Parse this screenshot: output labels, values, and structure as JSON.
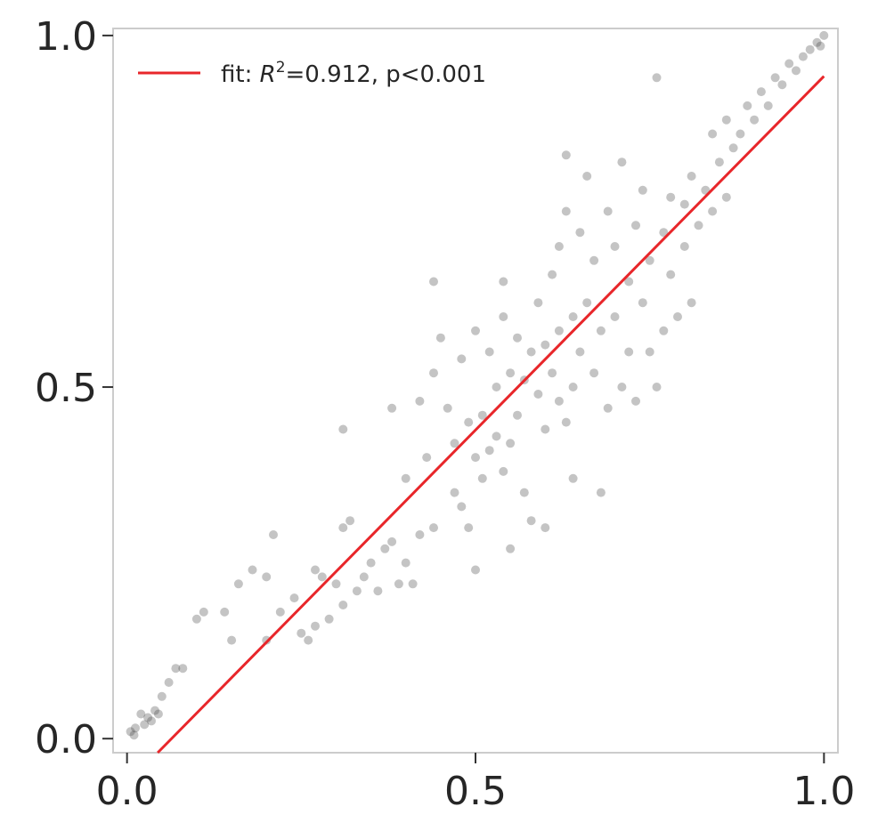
{
  "chart_data": {
    "type": "scatter",
    "title": "",
    "xlabel": "",
    "ylabel": "",
    "xlim": [
      -0.02,
      1.02
    ],
    "ylim": [
      -0.02,
      1.01
    ],
    "x_ticks": [
      {
        "value": 0.0,
        "label": "0.0"
      },
      {
        "value": 0.5,
        "label": "0.5"
      },
      {
        "value": 1.0,
        "label": "1.0"
      }
    ],
    "y_ticks": [
      {
        "value": 0.0,
        "label": "0.0"
      },
      {
        "value": 0.5,
        "label": "0.5"
      },
      {
        "value": 1.0,
        "label": "1.0"
      }
    ],
    "grid": false,
    "legend": {
      "placement": "upper-left",
      "entries": [
        {
          "prefix": "fit: ",
          "r_symbol": "R",
          "r_sup": "2",
          "suffix": "=0.912, p<0.001"
        }
      ]
    },
    "colors": {
      "points": "#3a3a3a",
      "fit_line": "#e8262a",
      "frame": "#cccccc",
      "text": "#262626"
    },
    "fit_line": {
      "x": [
        0.044,
        1.0
      ],
      "y": [
        -0.02,
        0.942
      ]
    },
    "points": [
      {
        "x": 0.005,
        "y": 0.01
      },
      {
        "x": 0.01,
        "y": 0.005
      },
      {
        "x": 0.012,
        "y": 0.015
      },
      {
        "x": 0.02,
        "y": 0.035
      },
      {
        "x": 0.025,
        "y": 0.02
      },
      {
        "x": 0.03,
        "y": 0.03
      },
      {
        "x": 0.035,
        "y": 0.025
      },
      {
        "x": 0.04,
        "y": 0.04
      },
      {
        "x": 0.045,
        "y": 0.035
      },
      {
        "x": 0.05,
        "y": 0.06
      },
      {
        "x": 0.06,
        "y": 0.08
      },
      {
        "x": 0.07,
        "y": 0.1
      },
      {
        "x": 0.08,
        "y": 0.1
      },
      {
        "x": 0.1,
        "y": 0.17
      },
      {
        "x": 0.11,
        "y": 0.18
      },
      {
        "x": 0.14,
        "y": 0.18
      },
      {
        "x": 0.15,
        "y": 0.14
      },
      {
        "x": 0.16,
        "y": 0.22
      },
      {
        "x": 0.18,
        "y": 0.24
      },
      {
        "x": 0.2,
        "y": 0.23
      },
      {
        "x": 0.2,
        "y": 0.14
      },
      {
        "x": 0.21,
        "y": 0.29
      },
      {
        "x": 0.22,
        "y": 0.18
      },
      {
        "x": 0.24,
        "y": 0.2
      },
      {
        "x": 0.25,
        "y": 0.15
      },
      {
        "x": 0.26,
        "y": 0.14
      },
      {
        "x": 0.27,
        "y": 0.16
      },
      {
        "x": 0.27,
        "y": 0.24
      },
      {
        "x": 0.28,
        "y": 0.23
      },
      {
        "x": 0.29,
        "y": 0.17
      },
      {
        "x": 0.3,
        "y": 0.22
      },
      {
        "x": 0.31,
        "y": 0.19
      },
      {
        "x": 0.31,
        "y": 0.3
      },
      {
        "x": 0.32,
        "y": 0.31
      },
      {
        "x": 0.33,
        "y": 0.21
      },
      {
        "x": 0.34,
        "y": 0.23
      },
      {
        "x": 0.31,
        "y": 0.44
      },
      {
        "x": 0.35,
        "y": 0.25
      },
      {
        "x": 0.36,
        "y": 0.21
      },
      {
        "x": 0.37,
        "y": 0.27
      },
      {
        "x": 0.38,
        "y": 0.28
      },
      {
        "x": 0.38,
        "y": 0.47
      },
      {
        "x": 0.39,
        "y": 0.22
      },
      {
        "x": 0.4,
        "y": 0.25
      },
      {
        "x": 0.4,
        "y": 0.37
      },
      {
        "x": 0.41,
        "y": 0.22
      },
      {
        "x": 0.42,
        "y": 0.29
      },
      {
        "x": 0.42,
        "y": 0.48
      },
      {
        "x": 0.43,
        "y": 0.4
      },
      {
        "x": 0.44,
        "y": 0.3
      },
      {
        "x": 0.44,
        "y": 0.52
      },
      {
        "x": 0.44,
        "y": 0.65
      },
      {
        "x": 0.45,
        "y": 0.57
      },
      {
        "x": 0.46,
        "y": 0.47
      },
      {
        "x": 0.47,
        "y": 0.35
      },
      {
        "x": 0.47,
        "y": 0.42
      },
      {
        "x": 0.48,
        "y": 0.33
      },
      {
        "x": 0.48,
        "y": 0.54
      },
      {
        "x": 0.49,
        "y": 0.3
      },
      {
        "x": 0.49,
        "y": 0.45
      },
      {
        "x": 0.5,
        "y": 0.4
      },
      {
        "x": 0.5,
        "y": 0.58
      },
      {
        "x": 0.5,
        "y": 0.24
      },
      {
        "x": 0.51,
        "y": 0.37
      },
      {
        "x": 0.51,
        "y": 0.46
      },
      {
        "x": 0.52,
        "y": 0.41
      },
      {
        "x": 0.52,
        "y": 0.55
      },
      {
        "x": 0.53,
        "y": 0.43
      },
      {
        "x": 0.53,
        "y": 0.5
      },
      {
        "x": 0.54,
        "y": 0.38
      },
      {
        "x": 0.54,
        "y": 0.6
      },
      {
        "x": 0.54,
        "y": 0.65
      },
      {
        "x": 0.55,
        "y": 0.42
      },
      {
        "x": 0.55,
        "y": 0.52
      },
      {
        "x": 0.55,
        "y": 0.27
      },
      {
        "x": 0.56,
        "y": 0.46
      },
      {
        "x": 0.56,
        "y": 0.57
      },
      {
        "x": 0.57,
        "y": 0.35
      },
      {
        "x": 0.57,
        "y": 0.51
      },
      {
        "x": 0.58,
        "y": 0.55
      },
      {
        "x": 0.58,
        "y": 0.31
      },
      {
        "x": 0.59,
        "y": 0.49
      },
      {
        "x": 0.59,
        "y": 0.62
      },
      {
        "x": 0.6,
        "y": 0.44
      },
      {
        "x": 0.6,
        "y": 0.56
      },
      {
        "x": 0.6,
        "y": 0.3
      },
      {
        "x": 0.61,
        "y": 0.52
      },
      {
        "x": 0.61,
        "y": 0.66
      },
      {
        "x": 0.62,
        "y": 0.48
      },
      {
        "x": 0.62,
        "y": 0.58
      },
      {
        "x": 0.62,
        "y": 0.7
      },
      {
        "x": 0.63,
        "y": 0.45
      },
      {
        "x": 0.63,
        "y": 0.75
      },
      {
        "x": 0.63,
        "y": 0.83
      },
      {
        "x": 0.64,
        "y": 0.5
      },
      {
        "x": 0.64,
        "y": 0.6
      },
      {
        "x": 0.64,
        "y": 0.37
      },
      {
        "x": 0.65,
        "y": 0.72
      },
      {
        "x": 0.65,
        "y": 0.55
      },
      {
        "x": 0.66,
        "y": 0.62
      },
      {
        "x": 0.66,
        "y": 0.8
      },
      {
        "x": 0.67,
        "y": 0.52
      },
      {
        "x": 0.67,
        "y": 0.68
      },
      {
        "x": 0.68,
        "y": 0.35
      },
      {
        "x": 0.68,
        "y": 0.58
      },
      {
        "x": 0.69,
        "y": 0.47
      },
      {
        "x": 0.69,
        "y": 0.75
      },
      {
        "x": 0.7,
        "y": 0.6
      },
      {
        "x": 0.7,
        "y": 0.7
      },
      {
        "x": 0.71,
        "y": 0.5
      },
      {
        "x": 0.71,
        "y": 0.82
      },
      {
        "x": 0.72,
        "y": 0.65
      },
      {
        "x": 0.72,
        "y": 0.55
      },
      {
        "x": 0.73,
        "y": 0.73
      },
      {
        "x": 0.73,
        "y": 0.48
      },
      {
        "x": 0.74,
        "y": 0.62
      },
      {
        "x": 0.74,
        "y": 0.78
      },
      {
        "x": 0.75,
        "y": 0.55
      },
      {
        "x": 0.75,
        "y": 0.68
      },
      {
        "x": 0.76,
        "y": 0.94
      },
      {
        "x": 0.76,
        "y": 0.5
      },
      {
        "x": 0.77,
        "y": 0.72
      },
      {
        "x": 0.77,
        "y": 0.58
      },
      {
        "x": 0.78,
        "y": 0.66
      },
      {
        "x": 0.78,
        "y": 0.77
      },
      {
        "x": 0.79,
        "y": 0.6
      },
      {
        "x": 0.8,
        "y": 0.7
      },
      {
        "x": 0.8,
        "y": 0.76
      },
      {
        "x": 0.81,
        "y": 0.8
      },
      {
        "x": 0.81,
        "y": 0.62
      },
      {
        "x": 0.82,
        "y": 0.73
      },
      {
        "x": 0.83,
        "y": 0.78
      },
      {
        "x": 0.84,
        "y": 0.86
      },
      {
        "x": 0.84,
        "y": 0.75
      },
      {
        "x": 0.85,
        "y": 0.82
      },
      {
        "x": 0.86,
        "y": 0.88
      },
      {
        "x": 0.86,
        "y": 0.77
      },
      {
        "x": 0.87,
        "y": 0.84
      },
      {
        "x": 0.88,
        "y": 0.86
      },
      {
        "x": 0.89,
        "y": 0.9
      },
      {
        "x": 0.9,
        "y": 0.88
      },
      {
        "x": 0.91,
        "y": 0.92
      },
      {
        "x": 0.92,
        "y": 0.9
      },
      {
        "x": 0.93,
        "y": 0.94
      },
      {
        "x": 0.94,
        "y": 0.93
      },
      {
        "x": 0.95,
        "y": 0.96
      },
      {
        "x": 0.96,
        "y": 0.95
      },
      {
        "x": 0.97,
        "y": 0.97
      },
      {
        "x": 0.98,
        "y": 0.98
      },
      {
        "x": 0.99,
        "y": 0.99
      },
      {
        "x": 1.0,
        "y": 1.0
      },
      {
        "x": 0.995,
        "y": 0.985
      }
    ]
  }
}
